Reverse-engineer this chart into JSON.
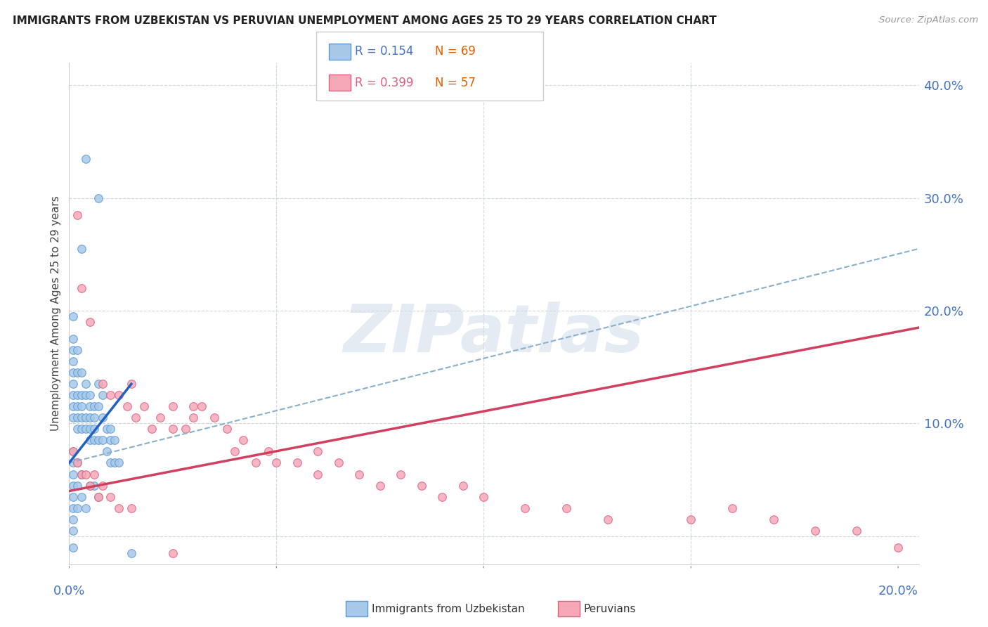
{
  "title": "IMMIGRANTS FROM UZBEKISTAN VS PERUVIAN UNEMPLOYMENT AMONG AGES 25 TO 29 YEARS CORRELATION CHART",
  "source": "Source: ZipAtlas.com",
  "ylabel": "Unemployment Among Ages 25 to 29 years",
  "xlim": [
    0.0,
    0.205
  ],
  "ylim": [
    -0.025,
    0.42
  ],
  "yticks": [
    0.0,
    0.1,
    0.2,
    0.3,
    0.4
  ],
  "ytick_labels": [
    "",
    "10.0%",
    "20.0%",
    "30.0%",
    "40.0%"
  ],
  "xtick_left_label": "0.0%",
  "xtick_right_label": "20.0%",
  "legend1_R": "0.154",
  "legend1_N": "69",
  "legend2_R": "0.399",
  "legend2_N": "57",
  "color_uzbek_fill": "#a8c8e8",
  "color_uzbek_edge": "#5b9bd5",
  "color_peru_fill": "#f4a8b8",
  "color_peru_edge": "#e06080",
  "color_uzbek_trendline": "#2060c0",
  "color_peru_trendline": "#d04060",
  "color_dashed_line": "#8ab0cc",
  "color_axis_text": "#4472c4",
  "color_grid": "#d0d8e0",
  "uzbek_x": [
    0.004,
    0.007,
    0.003,
    0.001,
    0.001,
    0.001,
    0.001,
    0.001,
    0.001,
    0.001,
    0.001,
    0.001,
    0.002,
    0.002,
    0.002,
    0.002,
    0.002,
    0.002,
    0.003,
    0.003,
    0.003,
    0.003,
    0.003,
    0.004,
    0.004,
    0.004,
    0.004,
    0.005,
    0.005,
    0.005,
    0.005,
    0.005,
    0.006,
    0.006,
    0.006,
    0.006,
    0.007,
    0.007,
    0.007,
    0.008,
    0.008,
    0.008,
    0.009,
    0.009,
    0.01,
    0.01,
    0.01,
    0.011,
    0.011,
    0.012,
    0.001,
    0.001,
    0.001,
    0.001,
    0.001,
    0.001,
    0.001,
    0.001,
    0.001,
    0.002,
    0.002,
    0.002,
    0.003,
    0.003,
    0.004,
    0.005,
    0.006,
    0.007,
    0.015
  ],
  "uzbek_y": [
    0.335,
    0.3,
    0.255,
    0.195,
    0.175,
    0.165,
    0.155,
    0.145,
    0.135,
    0.125,
    0.115,
    0.105,
    0.165,
    0.145,
    0.125,
    0.115,
    0.105,
    0.095,
    0.145,
    0.125,
    0.115,
    0.105,
    0.095,
    0.135,
    0.125,
    0.105,
    0.095,
    0.125,
    0.115,
    0.105,
    0.095,
    0.085,
    0.115,
    0.105,
    0.095,
    0.085,
    0.135,
    0.115,
    0.085,
    0.125,
    0.105,
    0.085,
    0.095,
    0.075,
    0.095,
    0.085,
    0.065,
    0.085,
    0.065,
    0.065,
    0.075,
    0.065,
    0.055,
    0.045,
    0.035,
    0.025,
    0.015,
    0.005,
    -0.01,
    0.065,
    0.045,
    0.025,
    0.055,
    0.035,
    0.025,
    0.045,
    0.045,
    0.035,
    -0.015
  ],
  "peru_x": [
    0.002,
    0.003,
    0.005,
    0.008,
    0.01,
    0.012,
    0.014,
    0.015,
    0.016,
    0.018,
    0.02,
    0.022,
    0.025,
    0.025,
    0.028,
    0.03,
    0.03,
    0.032,
    0.035,
    0.038,
    0.04,
    0.042,
    0.045,
    0.048,
    0.05,
    0.055,
    0.06,
    0.06,
    0.065,
    0.07,
    0.075,
    0.08,
    0.085,
    0.09,
    0.095,
    0.1,
    0.11,
    0.12,
    0.13,
    0.15,
    0.16,
    0.17,
    0.18,
    0.19,
    0.2,
    0.001,
    0.002,
    0.003,
    0.004,
    0.005,
    0.006,
    0.007,
    0.008,
    0.01,
    0.012,
    0.015,
    0.025
  ],
  "peru_y": [
    0.285,
    0.22,
    0.19,
    0.135,
    0.125,
    0.125,
    0.115,
    0.135,
    0.105,
    0.115,
    0.095,
    0.105,
    0.095,
    0.115,
    0.095,
    0.115,
    0.105,
    0.115,
    0.105,
    0.095,
    0.075,
    0.085,
    0.065,
    0.075,
    0.065,
    0.065,
    0.055,
    0.075,
    0.065,
    0.055,
    0.045,
    0.055,
    0.045,
    0.035,
    0.045,
    0.035,
    0.025,
    0.025,
    0.015,
    0.015,
    0.025,
    0.015,
    0.005,
    0.005,
    -0.01,
    0.075,
    0.065,
    0.055,
    0.055,
    0.045,
    0.055,
    0.035,
    0.045,
    0.035,
    0.025,
    0.025,
    -0.015
  ],
  "uzbek_trend_x_start": 0.0,
  "uzbek_trend_x_solid_end": 0.015,
  "uzbek_trend_x_dashed_end": 0.205,
  "uzbek_trend_y_at_0": 0.065,
  "uzbek_trend_y_at_015": 0.135,
  "uzbek_trend_y_at_205": 0.255,
  "peru_trend_x_start": 0.0,
  "peru_trend_x_end": 0.205,
  "peru_trend_y_at_0": 0.04,
  "peru_trend_y_at_205": 0.185,
  "watermark_text": "ZIPatlas",
  "background_color": "#ffffff"
}
